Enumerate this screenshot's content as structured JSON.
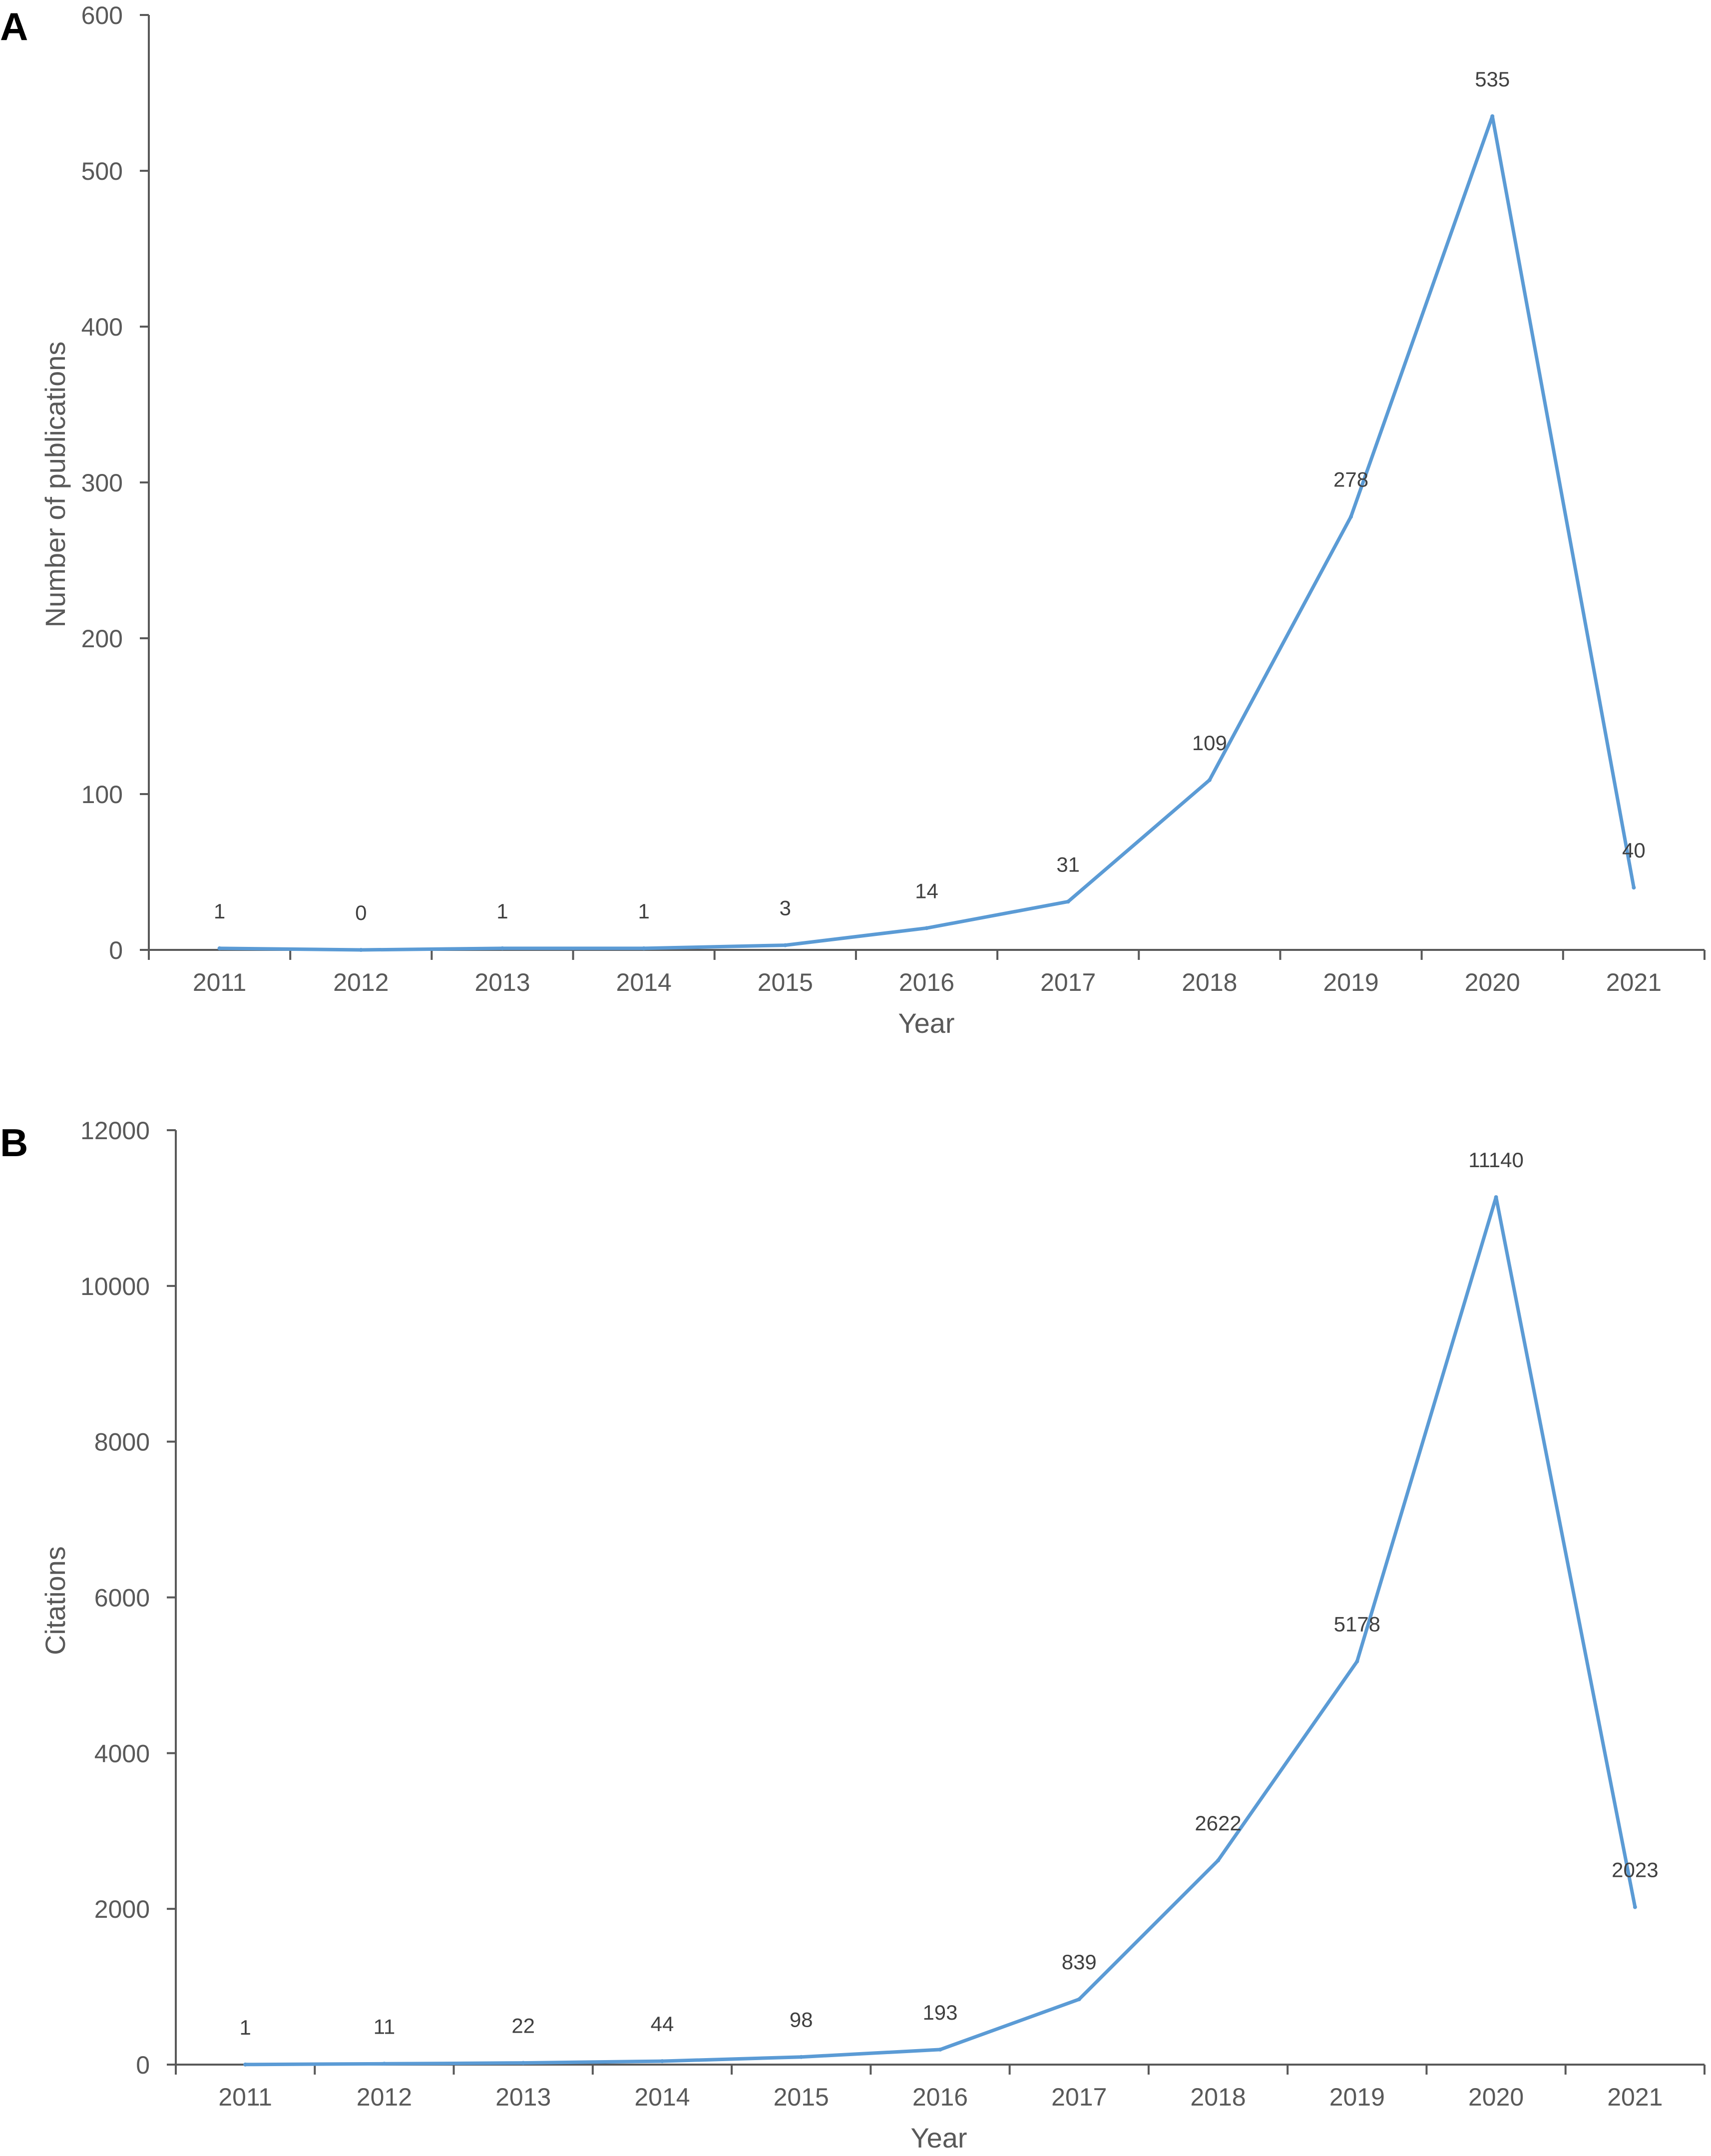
{
  "chart_data": [
    {
      "type": "line",
      "panel": "A",
      "title": "",
      "xlabel": "Year",
      "ylabel": "Number of publications",
      "categories": [
        "2011",
        "2012",
        "2013",
        "2014",
        "2015",
        "2016",
        "2017",
        "2018",
        "2019",
        "2020",
        "2021"
      ],
      "series": [
        {
          "values": [
            1,
            0,
            1,
            1,
            3,
            14,
            31,
            109,
            278,
            535,
            40
          ]
        }
      ],
      "data_labels": [
        "1",
        "0",
        "1",
        "1",
        "3",
        "14",
        "31",
        "109",
        "278",
        "535",
        "40"
      ],
      "ylim": [
        0,
        600
      ],
      "yticks": [
        0,
        100,
        200,
        300,
        400,
        500,
        600
      ],
      "ytick_labels": [
        "0",
        "100",
        "200",
        "300",
        "400",
        "500",
        "600"
      ],
      "grid": false,
      "line_color": "#5B9BD5"
    },
    {
      "type": "line",
      "panel": "B",
      "title": "",
      "xlabel": "Year",
      "ylabel": "Citations",
      "categories": [
        "2011",
        "2012",
        "2013",
        "2014",
        "2015",
        "2016",
        "2017",
        "2018",
        "2019",
        "2020",
        "2021"
      ],
      "series": [
        {
          "values": [
            1,
            11,
            22,
            44,
            98,
            193,
            839,
            2622,
            5178,
            11140,
            2023
          ]
        }
      ],
      "data_labels": [
        "1",
        "11",
        "22",
        "44",
        "98",
        "193",
        "839",
        "2622",
        "5178",
        "11140",
        "2023"
      ],
      "ylim": [
        0,
        12000
      ],
      "yticks": [
        0,
        2000,
        4000,
        6000,
        8000,
        10000,
        12000
      ],
      "ytick_labels": [
        "0",
        "2000",
        "4000",
        "6000",
        "8000",
        "10000",
        "12000"
      ],
      "grid": false,
      "line_color": "#5B9BD5"
    }
  ],
  "colors": {
    "axis": "#595959",
    "text": "#595959",
    "data_label": "#404040",
    "series": "#5B9BD5"
  }
}
